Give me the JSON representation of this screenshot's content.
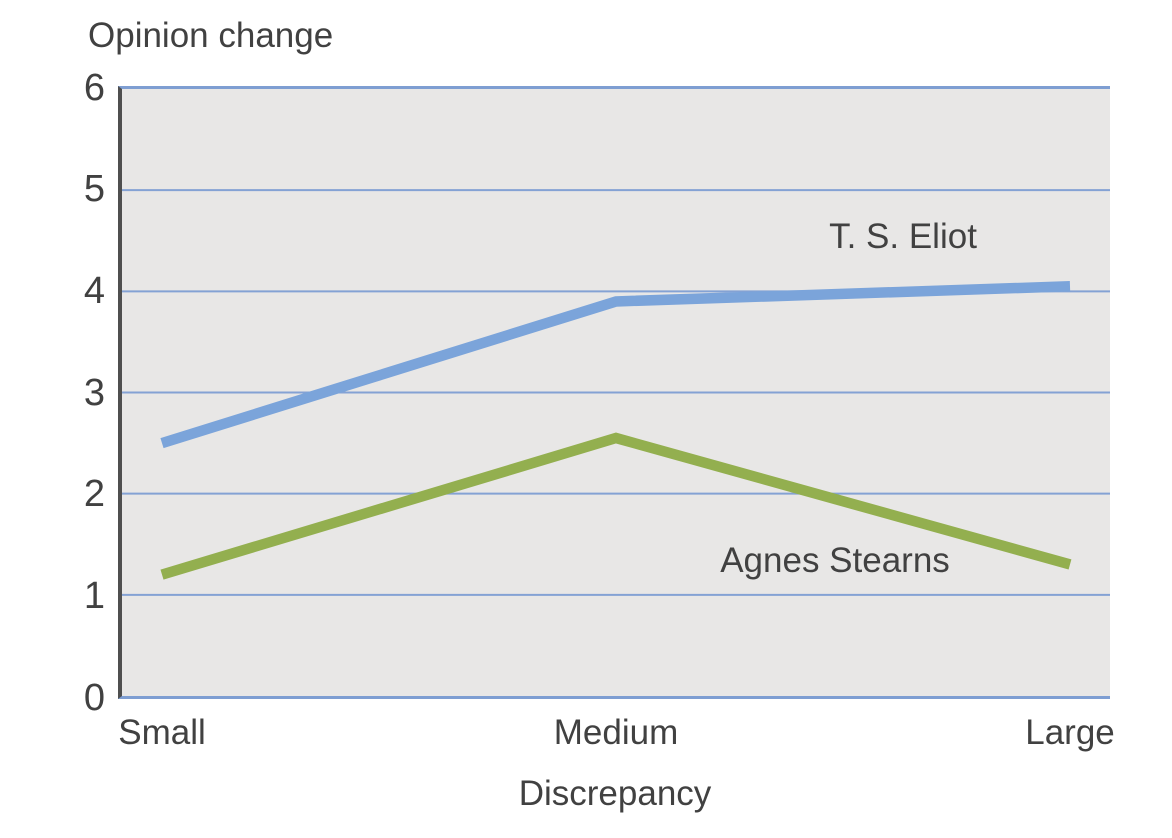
{
  "chart_data": {
    "type": "line",
    "title": "Opinion change",
    "ylabel": "Opinion change",
    "xlabel": "Discrepancy",
    "categories": [
      "Small",
      "Medium",
      "Large"
    ],
    "y_ticks": [
      0,
      1,
      2,
      3,
      4,
      5,
      6
    ],
    "ylim": [
      0,
      6
    ],
    "grid": "horizontal",
    "legend": "inline-labels",
    "colors": {
      "plot_background": "#e8e7e6",
      "gridline": "#84a2d4",
      "frame": "#7e9ed2",
      "axis": "#4f4f4f",
      "text": "#414141"
    },
    "series": [
      {
        "name": "T. S. Eliot",
        "color": "#7ba4da",
        "values": [
          2.5,
          3.9,
          4.05
        ]
      },
      {
        "name": "Agnes Stearns",
        "color": "#93af4f",
        "values": [
          1.2,
          2.55,
          1.3
        ]
      }
    ]
  }
}
